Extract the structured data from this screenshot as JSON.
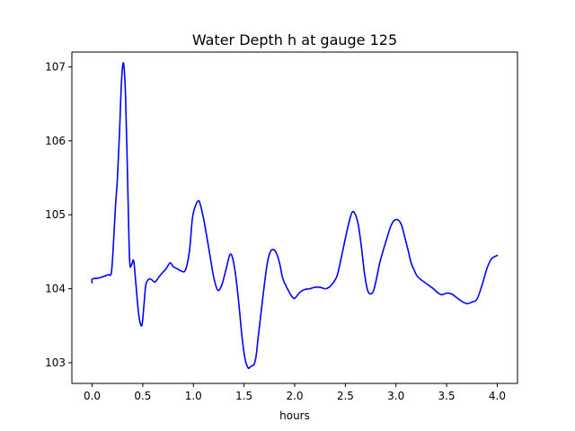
{
  "chart_data": {
    "type": "line",
    "title": "Water Depth h at gauge 125",
    "xlabel": "hours",
    "ylabel": "",
    "xlim": [
      -0.2,
      4.2
    ],
    "ylim": [
      102.72,
      107.2
    ],
    "xticks": [
      0.0,
      0.5,
      1.0,
      1.5,
      2.0,
      2.5,
      3.0,
      3.5,
      4.0
    ],
    "xtick_labels": [
      "0.0",
      "0.5",
      "1.0",
      "1.5",
      "2.0",
      "2.5",
      "3.0",
      "3.5",
      "4.0"
    ],
    "yticks": [
      103,
      104,
      105,
      106,
      107
    ],
    "ytick_labels": [
      "103",
      "104",
      "105",
      "106",
      "107"
    ],
    "grid": false,
    "series": [
      {
        "color": "#0000ff",
        "x": [
          0.0,
          0.0,
          0.04,
          0.08,
          0.12,
          0.16,
          0.19,
          0.21,
          0.23,
          0.25,
          0.27,
          0.29,
          0.31,
          0.33,
          0.35,
          0.37,
          0.39,
          0.41,
          0.43,
          0.46,
          0.49,
          0.51,
          0.53,
          0.56,
          0.59,
          0.62,
          0.66,
          0.69,
          0.73,
          0.77,
          0.8,
          0.84,
          0.88,
          0.92,
          0.96,
          0.99,
          1.02,
          1.05,
          1.07,
          1.1,
          1.13,
          1.16,
          1.2,
          1.24,
          1.28,
          1.32,
          1.36,
          1.39,
          1.42,
          1.45,
          1.48,
          1.51,
          1.54,
          1.56,
          1.58,
          1.6,
          1.62,
          1.64,
          1.67,
          1.7,
          1.73,
          1.76,
          1.79,
          1.82,
          1.85,
          1.88,
          1.91,
          1.94,
          1.97,
          2.0,
          2.05,
          2.1,
          2.15,
          2.2,
          2.25,
          2.3,
          2.34,
          2.38,
          2.42,
          2.46,
          2.5,
          2.54,
          2.57,
          2.6,
          2.63,
          2.66,
          2.69,
          2.72,
          2.75,
          2.78,
          2.81,
          2.84,
          2.87,
          2.91,
          2.95,
          2.99,
          3.03,
          3.06,
          3.09,
          3.12,
          3.15,
          3.18,
          3.21,
          3.25,
          3.29,
          3.33,
          3.37,
          3.41,
          3.45,
          3.5,
          3.55,
          3.6,
          3.65,
          3.7,
          3.75,
          3.8,
          3.85,
          3.9,
          3.94,
          3.97,
          4.0
        ],
        "y": [
          104.08,
          104.13,
          104.14,
          104.15,
          104.17,
          104.19,
          104.22,
          104.6,
          105.1,
          105.5,
          106.1,
          106.8,
          107.05,
          106.6,
          105.5,
          104.4,
          104.33,
          104.38,
          104.1,
          103.65,
          103.5,
          103.75,
          104.05,
          104.13,
          104.12,
          104.09,
          104.16,
          104.21,
          104.27,
          104.35,
          104.3,
          104.27,
          104.24,
          104.25,
          104.5,
          104.95,
          105.12,
          105.19,
          105.13,
          104.95,
          104.72,
          104.48,
          104.16,
          103.98,
          104.05,
          104.25,
          104.46,
          104.4,
          104.15,
          103.78,
          103.35,
          103.05,
          102.93,
          102.94,
          102.96,
          102.98,
          103.1,
          103.35,
          103.7,
          104.05,
          104.35,
          104.5,
          104.53,
          104.48,
          104.35,
          104.15,
          104.05,
          103.97,
          103.9,
          103.87,
          103.95,
          103.99,
          104.0,
          104.02,
          104.02,
          104.0,
          104.02,
          104.08,
          104.18,
          104.42,
          104.68,
          104.92,
          105.04,
          105.0,
          104.85,
          104.55,
          104.2,
          103.98,
          103.93,
          103.98,
          104.15,
          104.35,
          104.5,
          104.68,
          104.85,
          104.93,
          104.92,
          104.84,
          104.68,
          104.52,
          104.35,
          104.25,
          104.17,
          104.12,
          104.08,
          104.04,
          104.0,
          103.95,
          103.92,
          103.94,
          103.93,
          103.88,
          103.83,
          103.8,
          103.82,
          103.86,
          104.05,
          104.28,
          104.4,
          104.43,
          104.45
        ]
      }
    ]
  }
}
